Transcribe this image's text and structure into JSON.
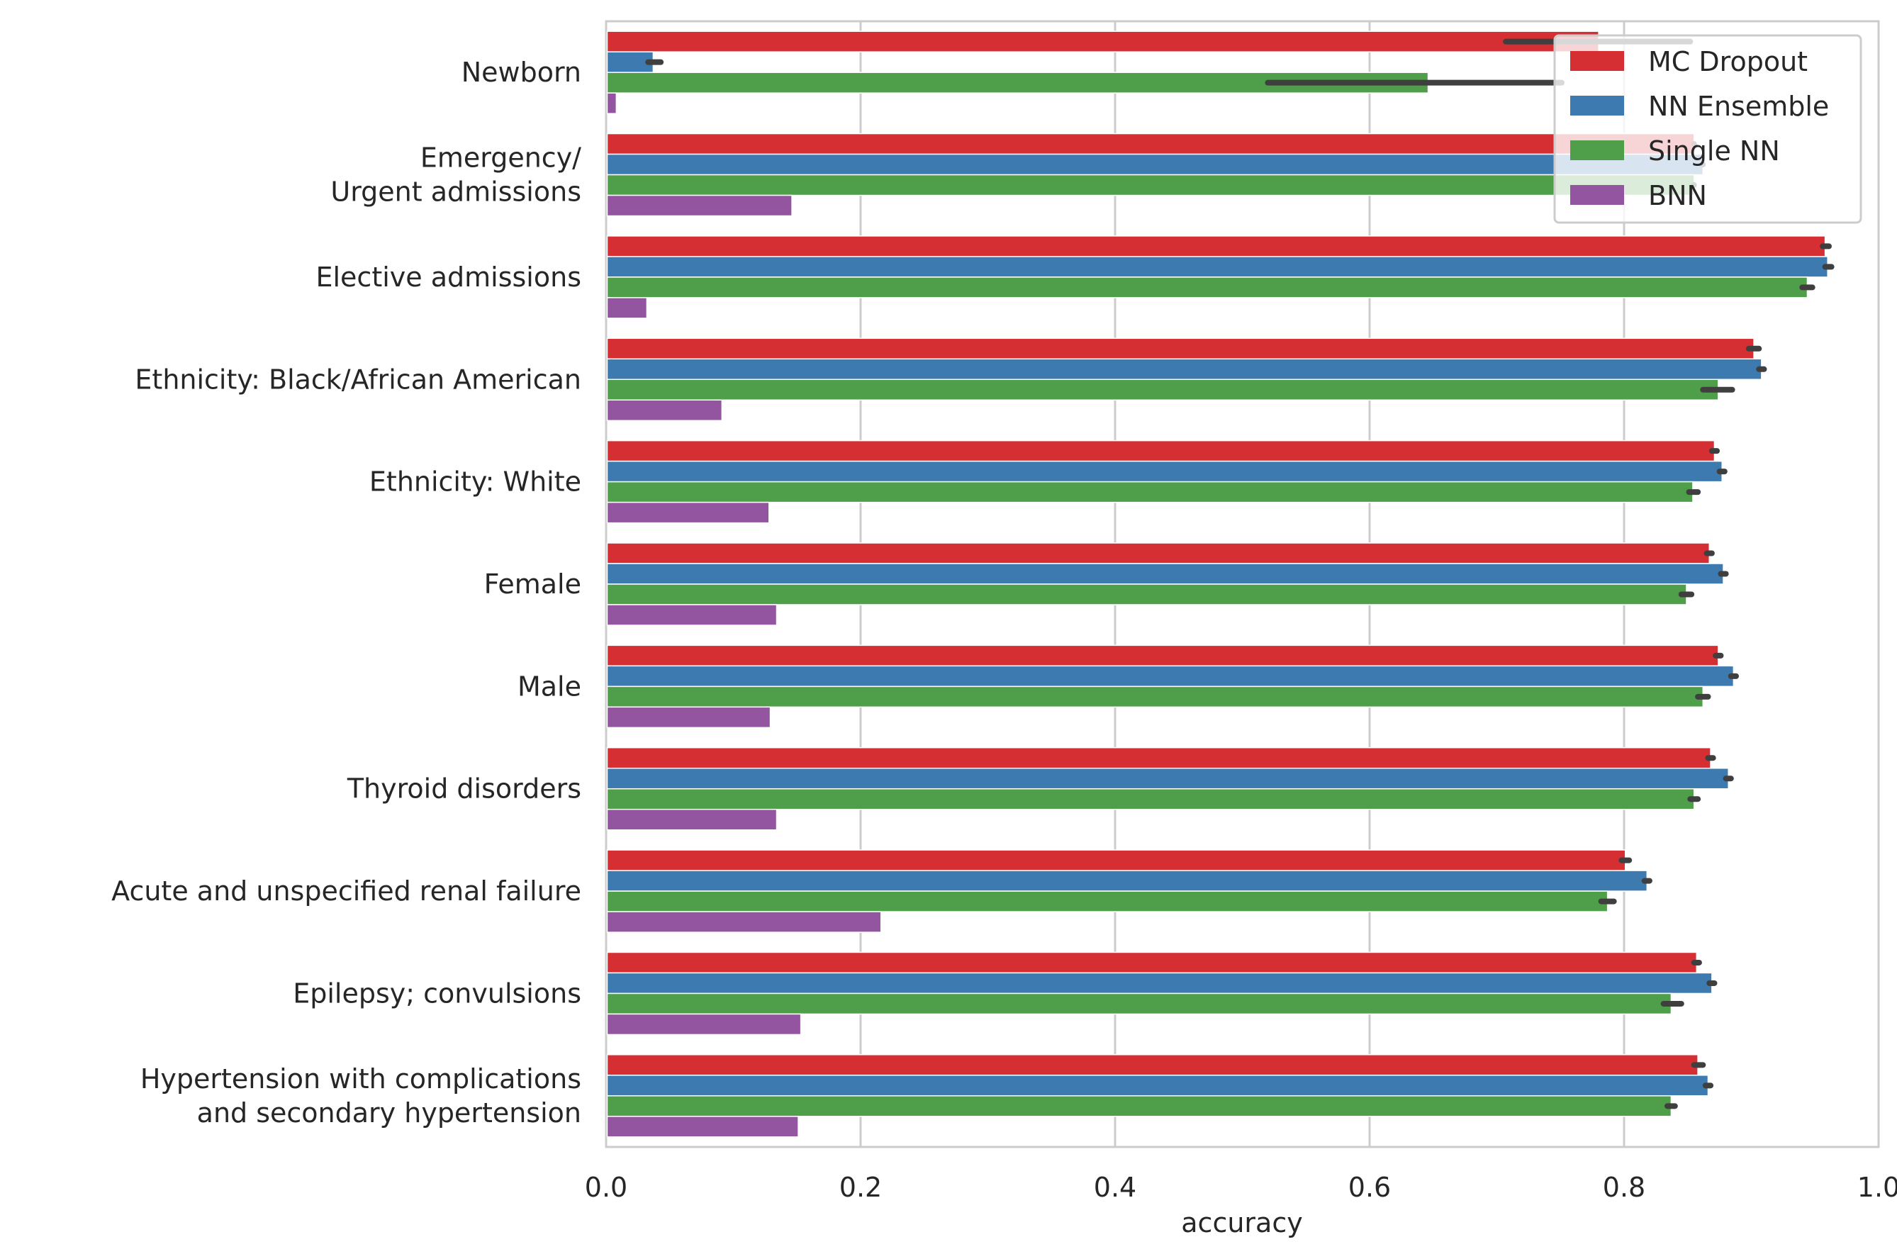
{
  "chart_data": {
    "type": "bar",
    "orientation": "horizontal",
    "title": "",
    "xlabel": "accuracy",
    "ylabel": "",
    "xlim": [
      0.0,
      1.0
    ],
    "xticks": [
      "0.0",
      "0.2",
      "0.4",
      "0.6",
      "0.8",
      "1.0"
    ],
    "grid": "vertical",
    "legend_position": "top-right",
    "categories": [
      [
        "Newborn"
      ],
      [
        "Emergency/",
        "Urgent admissions"
      ],
      [
        "Elective admissions"
      ],
      [
        "Ethnicity: Black/African American"
      ],
      [
        "Ethnicity: White"
      ],
      [
        "Female"
      ],
      [
        "Male"
      ],
      [
        "Thyroid disorders"
      ],
      [
        "Acute and unspecified renal failure"
      ],
      [
        "Epilepsy; convulsions"
      ],
      [
        "Hypertension with complications",
        "and secondary hypertension"
      ]
    ],
    "series": [
      {
        "name": "MC Dropout",
        "color": "#d62f33",
        "values": [
          0.78,
          0.855,
          0.958,
          0.902,
          0.871,
          0.867,
          0.874,
          0.868,
          0.801,
          0.857,
          0.858
        ],
        "errors": [
          [
            0.707,
            0.852
          ],
          [
            0.855,
            0.855
          ],
          [
            0.956,
            0.961
          ],
          [
            0.898,
            0.906
          ],
          [
            0.869,
            0.873
          ],
          [
            0.865,
            0.869
          ],
          [
            0.872,
            0.876
          ],
          [
            0.866,
            0.87
          ],
          [
            0.798,
            0.804
          ],
          [
            0.855,
            0.859
          ],
          [
            0.855,
            0.862
          ]
        ]
      },
      {
        "name": "NN Ensemble",
        "color": "#3d7ab0",
        "values": [
          0.037,
          0.862,
          0.96,
          0.908,
          0.877,
          0.878,
          0.886,
          0.882,
          0.818,
          0.869,
          0.866
        ],
        "errors": [
          [
            0.033,
            0.043
          ],
          [
            0.862,
            0.862
          ],
          [
            0.958,
            0.963
          ],
          [
            0.906,
            0.91
          ],
          [
            0.875,
            0.879
          ],
          [
            0.876,
            0.88
          ],
          [
            0.884,
            0.888
          ],
          [
            0.88,
            0.884
          ],
          [
            0.816,
            0.82
          ],
          [
            0.867,
            0.871
          ],
          [
            0.864,
            0.868
          ]
        ]
      },
      {
        "name": "Single NN",
        "color": "#4f9e49",
        "values": [
          0.646,
          0.855,
          0.944,
          0.874,
          0.854,
          0.849,
          0.862,
          0.855,
          0.787,
          0.837,
          0.837
        ],
        "errors": [
          [
            0.52,
            0.751
          ],
          [
            0.855,
            0.855
          ],
          [
            0.94,
            0.948
          ],
          [
            0.862,
            0.885
          ],
          [
            0.851,
            0.858
          ],
          [
            0.845,
            0.853
          ],
          [
            0.858,
            0.866
          ],
          [
            0.852,
            0.858
          ],
          [
            0.782,
            0.792
          ],
          [
            0.831,
            0.845
          ],
          [
            0.834,
            0.84
          ]
        ]
      },
      {
        "name": "BNN",
        "color": "#9455a0",
        "values": [
          0.008,
          0.146,
          0.032,
          0.091,
          0.128,
          0.134,
          0.129,
          0.134,
          0.216,
          0.153,
          0.151
        ],
        "errors": [
          null,
          null,
          null,
          null,
          null,
          null,
          null,
          null,
          null,
          null,
          null
        ]
      }
    ]
  }
}
